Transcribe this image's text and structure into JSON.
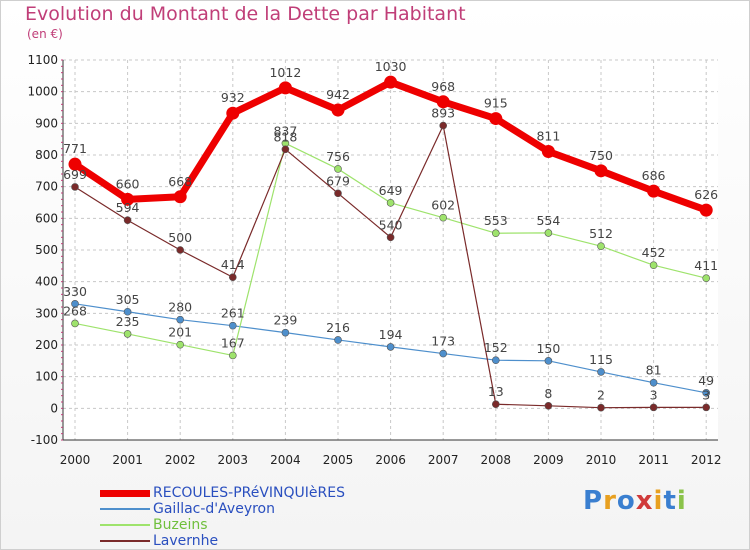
{
  "title": "Evolution du Montant de la Dette par Habitant",
  "subtitle": "(en €)",
  "logo": "Proxiti",
  "chart_data": {
    "type": "line",
    "title": "Evolution du Montant de la Dette par Habitant",
    "subtitle": "(en €)",
    "x": [
      "2000",
      "2001",
      "2002",
      "2003",
      "2004",
      "2005",
      "2006",
      "2007",
      "2008",
      "2009",
      "2010",
      "2011",
      "2012"
    ],
    "ylim": [
      -100,
      1100
    ],
    "yticks": [
      -100,
      0,
      100,
      200,
      300,
      400,
      500,
      600,
      700,
      800,
      900,
      1000,
      1100
    ],
    "grid": true,
    "legend_position": "bottom-left",
    "series": [
      {
        "name": "RECOULES-PRéVINQUIèRES",
        "color": "#ee0000",
        "width": 7,
        "values": [
          771,
          660,
          668,
          932,
          1012,
          942,
          1030,
          968,
          915,
          811,
          750,
          686,
          626
        ],
        "labels": [
          "771",
          "660",
          "668",
          "932",
          "1012",
          "942",
          "1030",
          "968",
          "915",
          "811",
          "750",
          "686",
          "626"
        ]
      },
      {
        "name": "Gaillac-d'Aveyron",
        "color": "#4e8fcc",
        "width": 1.2,
        "values": [
          330,
          305,
          280,
          261,
          239,
          216,
          194,
          173,
          152,
          150,
          115,
          81,
          49
        ],
        "labels": [
          "330",
          "305",
          "280",
          "261",
          "239",
          "216",
          "194",
          "173",
          "152",
          "150",
          "115",
          "81",
          "49"
        ]
      },
      {
        "name": "Buzeins",
        "color": "#9ee36c",
        "width": 1.2,
        "values": [
          268,
          235,
          201,
          167,
          837,
          756,
          649,
          602,
          553,
          554,
          512,
          452,
          411
        ],
        "labels": [
          "268",
          "235",
          "201",
          "167",
          "837",
          "756",
          "649",
          "602",
          "553",
          "554",
          "512",
          "452",
          "411"
        ]
      },
      {
        "name": "Lavernhe",
        "color": "#7a2a2a",
        "width": 1.2,
        "values": [
          699,
          594,
          500,
          414,
          818,
          679,
          540,
          893,
          13,
          8,
          2,
          3,
          3
        ],
        "labels": [
          "699",
          "594",
          "500",
          "414",
          "818",
          "679",
          "540",
          "893",
          "13",
          "8",
          "2",
          "3",
          "3"
        ]
      }
    ]
  }
}
